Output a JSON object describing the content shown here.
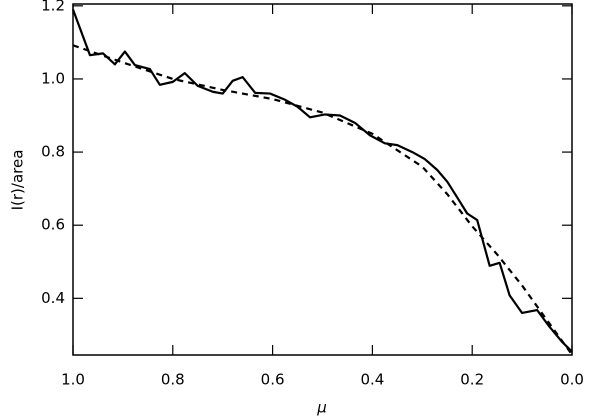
{
  "chart_data": {
    "type": "line",
    "x_label": "μ",
    "y_label": "I(r)/area",
    "series": [
      {
        "name": null,
        "color": "#000000",
        "dash": false,
        "x": [
          1.0,
          0.966,
          0.94,
          0.916,
          0.896,
          0.876,
          0.846,
          0.826,
          0.8,
          0.776,
          0.75,
          0.72,
          0.7,
          0.68,
          0.66,
          0.635,
          0.605,
          0.575,
          0.55,
          0.525,
          0.495,
          0.465,
          0.435,
          0.405,
          0.375,
          0.35,
          0.32,
          0.295,
          0.27,
          0.25,
          0.23,
          0.21,
          0.19,
          0.165,
          0.145,
          0.125,
          0.1,
          0.07,
          0.045,
          0.02,
          0.0
        ],
        "values": [
          1.19,
          1.065,
          1.07,
          1.04,
          1.075,
          1.038,
          1.027,
          0.984,
          0.992,
          1.016,
          0.981,
          0.965,
          0.96,
          0.995,
          1.005,
          0.962,
          0.96,
          0.943,
          0.924,
          0.895,
          0.903,
          0.9,
          0.88,
          0.846,
          0.824,
          0.819,
          0.8,
          0.781,
          0.751,
          0.719,
          0.676,
          0.632,
          0.614,
          0.489,
          0.497,
          0.408,
          0.36,
          0.368,
          0.322,
          0.281,
          0.254
        ]
      },
      {
        "name": null,
        "color": "#000000",
        "dash": true,
        "x": [
          1.0,
          0.9,
          0.8,
          0.7,
          0.6,
          0.5,
          0.4,
          0.3,
          0.25,
          0.2,
          0.15,
          0.1,
          0.05,
          0.0
        ],
        "values": [
          1.092,
          1.045,
          1.0,
          0.97,
          0.945,
          0.908,
          0.85,
          0.76,
          0.685,
          0.597,
          0.52,
          0.435,
          0.34,
          0.246
        ]
      }
    ],
    "xlim": [
      1.0,
      0.0
    ],
    "xticks": [
      {
        "value": 1,
        "label": "1.0"
      },
      0.8,
      0.6,
      0.4,
      0.2,
      {
        "value": 0,
        "label": "0.0"
      }
    ],
    "ylim": [
      0.245,
      1.205
    ],
    "yticks": [
      0.4,
      0.6,
      0.8,
      {
        "value": 1,
        "label": "1.0"
      },
      1.2
    ],
    "grid": false
  }
}
